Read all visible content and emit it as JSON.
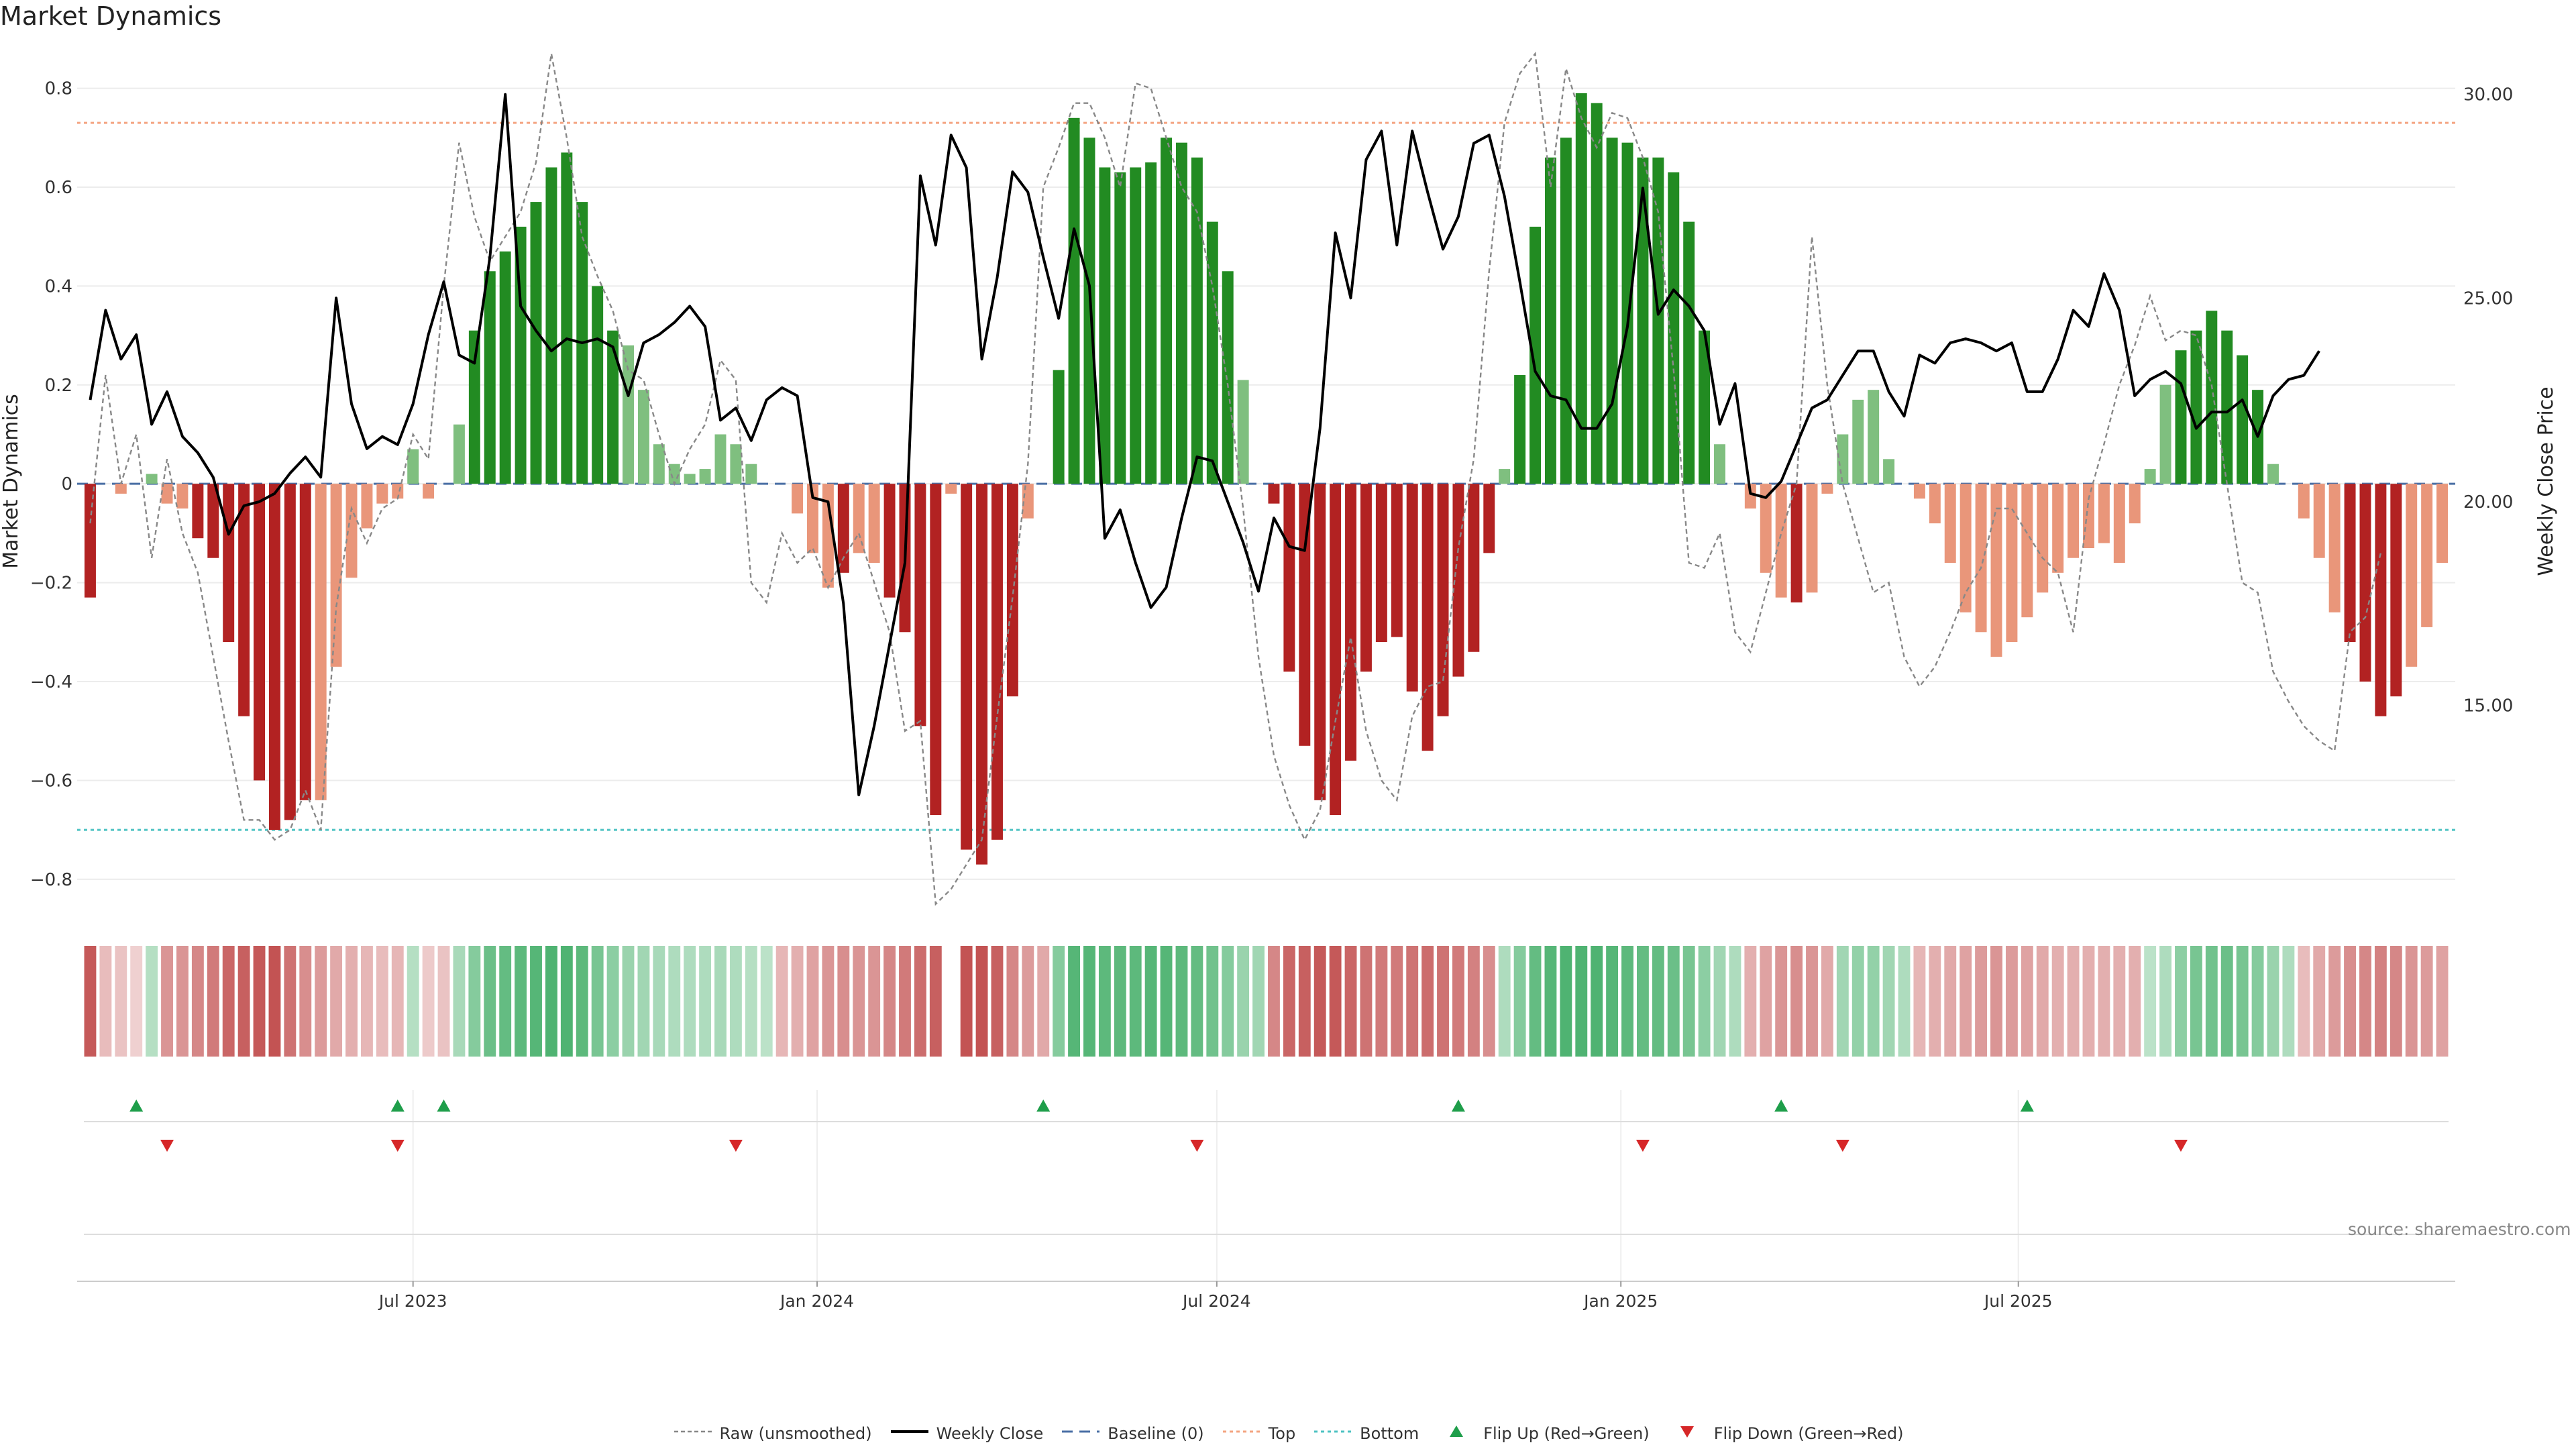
{
  "title": "Market Dynamics",
  "source_text": "source: sharemaestro.com",
  "colors": {
    "up_strong": "#228B22",
    "up_light": "#7FBF7F",
    "down_strong": "#B22222",
    "down_light": "#E9967A",
    "weekly_close": "#000000",
    "raw": "#888888",
    "baseline": "#4A6FA5",
    "top": "#F4A582",
    "bottom": "#4FC3C3",
    "flip_up": "#1E9E4A",
    "flip_down": "#D62728"
  },
  "legend": [
    {
      "label": "Raw (unsmoothed)",
      "key": "raw"
    },
    {
      "label": "Weekly Close",
      "key": "close"
    },
    {
      "label": "Baseline (0)",
      "key": "baseline"
    },
    {
      "label": "Top",
      "key": "top"
    },
    {
      "label": "Bottom",
      "key": "bottom"
    },
    {
      "label": "Flip Up (Red→Green)",
      "key": "flip_up"
    },
    {
      "label": "Flip Down (Green→Red)",
      "key": "flip_down"
    }
  ],
  "chart_data": {
    "type": "bar",
    "title": "Market Dynamics",
    "ylabel": "Market Dynamics",
    "y2label": "Weekly Close Price",
    "ylim": [
      -0.86,
      0.87
    ],
    "y2lim": [
      10.0,
      31.0
    ],
    "yticks": [
      -0.8,
      -0.6,
      -0.4,
      -0.2,
      0,
      0.2,
      0.4,
      0.6,
      0.8
    ],
    "yticklabels": [
      "−0.8",
      "−0.6",
      "−0.4",
      "−0.2",
      "0",
      "0.2",
      "0.4",
      "0.6",
      "0.8"
    ],
    "y2ticks": [
      15.0,
      20.0,
      25.0,
      30.0
    ],
    "y2ticklabels": [
      "15.00",
      "20.00",
      "25.00",
      "30.00"
    ],
    "xtick_labels": [
      {
        "date": "2023-07-01",
        "label": "Jul 2023"
      },
      {
        "date": "2024-01-01",
        "label": "Jan 2024"
      },
      {
        "date": "2024-07-01",
        "label": "Jul 2024"
      },
      {
        "date": "2025-01-01",
        "label": "Jan 2025"
      },
      {
        "date": "2025-07-01",
        "label": "Jul 2025"
      }
    ],
    "start_date": "2023-02-04",
    "week_step_days": 7,
    "top_level": 0.73,
    "bottom_level": -0.7,
    "baseline": 0,
    "grid": true,
    "legend_position": "bottom-center",
    "momentum": [
      -0.23,
      0.0,
      -0.02,
      0.0,
      0.02,
      -0.04,
      -0.05,
      -0.11,
      -0.15,
      -0.32,
      -0.47,
      -0.6,
      -0.7,
      -0.68,
      -0.64,
      -0.64,
      -0.37,
      -0.19,
      -0.09,
      -0.04,
      -0.03,
      0.07,
      -0.03,
      0.0,
      0.12,
      0.31,
      0.43,
      0.47,
      0.52,
      0.57,
      0.64,
      0.67,
      0.57,
      0.4,
      0.31,
      0.28,
      0.19,
      0.08,
      0.04,
      0.02,
      0.03,
      0.1,
      0.08,
      0.04,
      0.0,
      0.0,
      -0.06,
      -0.14,
      -0.21,
      -0.18,
      -0.14,
      -0.16,
      -0.23,
      -0.3,
      -0.49,
      -0.67,
      -0.02,
      -0.74,
      -0.77,
      -0.72,
      -0.43,
      -0.07,
      0.0,
      0.23,
      0.74,
      0.7,
      0.64,
      0.63,
      0.64,
      0.65,
      0.7,
      0.69,
      0.66,
      0.53,
      0.43,
      0.21,
      0.0,
      -0.04,
      -0.38,
      -0.53,
      -0.64,
      -0.67,
      -0.56,
      -0.38,
      -0.32,
      -0.31,
      -0.42,
      -0.54,
      -0.47,
      -0.39,
      -0.34,
      -0.14,
      0.03,
      0.22,
      0.52,
      0.66,
      0.7,
      0.79,
      0.77,
      0.7,
      0.69,
      0.66,
      0.66,
      0.63,
      0.53,
      0.31,
      0.08,
      0.0,
      -0.05,
      -0.18,
      -0.23,
      -0.24,
      -0.22,
      -0.02,
      0.1,
      0.17,
      0.19,
      0.05,
      0.0,
      -0.03,
      -0.08,
      -0.16,
      -0.26,
      -0.3,
      -0.35,
      -0.32,
      -0.27,
      -0.22,
      -0.18,
      -0.15,
      -0.13,
      -0.12,
      -0.16,
      -0.08,
      0.03,
      0.2,
      0.27,
      0.31,
      0.35,
      0.31,
      0.26,
      0.19,
      0.04,
      0.0,
      -0.07,
      -0.15,
      -0.26,
      -0.32,
      -0.4,
      -0.47,
      -0.43,
      -0.37,
      -0.29,
      -0.16
    ],
    "strength": [
      0.95,
      0.2,
      0.15,
      0.05,
      0.25,
      0.5,
      0.5,
      0.6,
      0.7,
      0.85,
      0.9,
      0.95,
      1.0,
      0.75,
      0.55,
      0.45,
      0.35,
      0.3,
      0.25,
      0.2,
      0.25,
      0.25,
      0.1,
      0.15,
      0.35,
      0.6,
      0.8,
      0.85,
      0.9,
      0.95,
      1.0,
      1.0,
      0.9,
      0.7,
      0.55,
      0.45,
      0.4,
      0.35,
      0.3,
      0.3,
      0.3,
      0.35,
      0.3,
      0.25,
      0.2,
      0.25,
      0.3,
      0.4,
      0.5,
      0.55,
      0.5,
      0.5,
      0.6,
      0.7,
      0.8,
      0.9,
      0,
      1.0,
      1.0,
      0.9,
      0.6,
      0.45,
      0.35,
      0.6,
      0.95,
      0.95,
      0.9,
      0.9,
      0.9,
      0.95,
      0.95,
      0.9,
      0.85,
      0.75,
      0.6,
      0.45,
      0.4,
      0.6,
      0.85,
      0.9,
      0.95,
      0.95,
      0.85,
      0.75,
      0.7,
      0.7,
      0.75,
      0.8,
      0.75,
      0.7,
      0.65,
      0.55,
      0.3,
      0.6,
      0.85,
      0.95,
      1.0,
      1.0,
      1.0,
      0.95,
      0.9,
      0.85,
      0.85,
      0.8,
      0.7,
      0.55,
      0.4,
      0.3,
      0.3,
      0.4,
      0.5,
      0.55,
      0.5,
      0.35,
      0.4,
      0.5,
      0.5,
      0.4,
      0.3,
      0.25,
      0.3,
      0.35,
      0.4,
      0.45,
      0.5,
      0.45,
      0.4,
      0.35,
      0.3,
      0.3,
      0.3,
      0.3,
      0.3,
      0.3,
      0.2,
      0.3,
      0.55,
      0.7,
      0.75,
      0.8,
      0.7,
      0.6,
      0.45,
      0.3,
      0.2,
      0.35,
      0.45,
      0.55,
      0.6,
      0.65,
      0.6,
      0.5,
      0.45,
      0.4
    ],
    "raw": [
      -0.08,
      0.22,
      0.0,
      0.1,
      -0.15,
      0.05,
      -0.1,
      -0.18,
      -0.35,
      -0.52,
      -0.68,
      -0.68,
      -0.72,
      -0.7,
      -0.62,
      -0.7,
      -0.25,
      -0.05,
      -0.12,
      -0.05,
      -0.03,
      0.1,
      0.05,
      0.4,
      0.69,
      0.54,
      0.45,
      0.5,
      0.55,
      0.65,
      0.87,
      0.7,
      0.5,
      0.42,
      0.35,
      0.23,
      0.21,
      0.1,
      0.0,
      0.07,
      0.12,
      0.25,
      0.21,
      -0.2,
      -0.24,
      -0.1,
      -0.16,
      -0.13,
      -0.21,
      -0.15,
      -0.1,
      -0.2,
      -0.3,
      -0.5,
      -0.48,
      -0.85,
      -0.82,
      -0.77,
      -0.72,
      -0.47,
      -0.23,
      0.04,
      0.6,
      0.68,
      0.77,
      0.77,
      0.7,
      0.6,
      0.81,
      0.8,
      0.7,
      0.6,
      0.55,
      0.4,
      0.2,
      -0.05,
      -0.35,
      -0.55,
      -0.65,
      -0.72,
      -0.66,
      -0.48,
      -0.31,
      -0.5,
      -0.6,
      -0.64,
      -0.47,
      -0.41,
      -0.4,
      -0.13,
      0.05,
      0.43,
      0.73,
      0.83,
      0.87,
      0.6,
      0.84,
      0.74,
      0.68,
      0.75,
      0.74,
      0.66,
      0.55,
      0.23,
      -0.16,
      -0.17,
      -0.1,
      -0.3,
      -0.34,
      -0.22,
      -0.1,
      0.0,
      0.5,
      0.2,
      0.0,
      -0.11,
      -0.22,
      -0.2,
      -0.35,
      -0.41,
      -0.37,
      -0.3,
      -0.22,
      -0.17,
      -0.05,
      -0.05,
      -0.1,
      -0.15,
      -0.18,
      -0.3,
      -0.03,
      0.08,
      0.2,
      0.28,
      0.38,
      0.29,
      0.31,
      0.3,
      0.2,
      0.0,
      -0.2,
      -0.22,
      -0.38,
      -0.44,
      -0.49,
      -0.52,
      -0.54,
      -0.3,
      -0.27,
      -0.14
    ],
    "weekly_close": [
      22.5,
      24.7,
      23.5,
      24.1,
      21.9,
      22.7,
      21.6,
      21.2,
      20.6,
      19.2,
      19.9,
      20.0,
      20.2,
      20.7,
      21.1,
      20.6,
      25.0,
      22.4,
      21.3,
      21.6,
      21.4,
      22.4,
      24.1,
      25.4,
      23.6,
      23.4,
      26.0,
      30.0,
      24.8,
      24.2,
      23.7,
      24.0,
      23.9,
      24.0,
      23.8,
      22.6,
      23.9,
      24.1,
      24.4,
      24.8,
      24.3,
      22.0,
      22.3,
      21.5,
      22.5,
      22.8,
      22.6,
      20.1,
      20.0,
      17.5,
      12.8,
      14.5,
      16.5,
      18.5,
      28.0,
      26.3,
      29.0,
      28.2,
      23.5,
      25.5,
      28.1,
      27.6,
      26.0,
      24.5,
      26.7,
      25.3,
      19.1,
      19.8,
      18.5,
      17.4,
      17.9,
      19.6,
      21.1,
      21.0,
      20.0,
      19.0,
      17.8,
      19.6,
      18.9,
      18.8,
      21.8,
      26.6,
      25.0,
      28.4,
      29.1,
      26.3,
      29.1,
      27.6,
      26.2,
      27.0,
      28.8,
      29.0,
      27.5,
      25.4,
      23.2,
      22.6,
      22.5,
      21.8,
      21.8,
      22.4,
      24.3,
      27.7,
      24.6,
      25.2,
      24.8,
      24.2,
      21.9,
      22.9,
      20.2,
      20.1,
      20.5,
      21.4,
      22.3,
      22.5,
      23.1,
      23.7,
      23.7,
      22.7,
      22.1,
      23.6,
      23.4,
      23.9,
      24.0,
      23.9,
      23.7,
      23.9,
      22.7,
      22.7,
      23.5,
      24.7,
      24.3,
      25.6,
      24.7,
      22.6,
      23.0,
      23.2,
      22.9,
      21.8,
      22.2,
      22.2,
      22.5,
      21.6,
      22.6,
      23.0,
      23.1,
      23.7
    ],
    "flip_up_dates": [
      "2023-02-25",
      "2023-06-24",
      "2023-07-15",
      "2024-04-13",
      "2024-10-19",
      "2025-03-15",
      "2025-07-05"
    ],
    "flip_down_dates": [
      "2023-03-11",
      "2023-06-24",
      "2023-11-25",
      "2024-06-22",
      "2025-01-11",
      "2025-04-12",
      "2025-09-13"
    ],
    "heatmap_type": "heatmap"
  }
}
